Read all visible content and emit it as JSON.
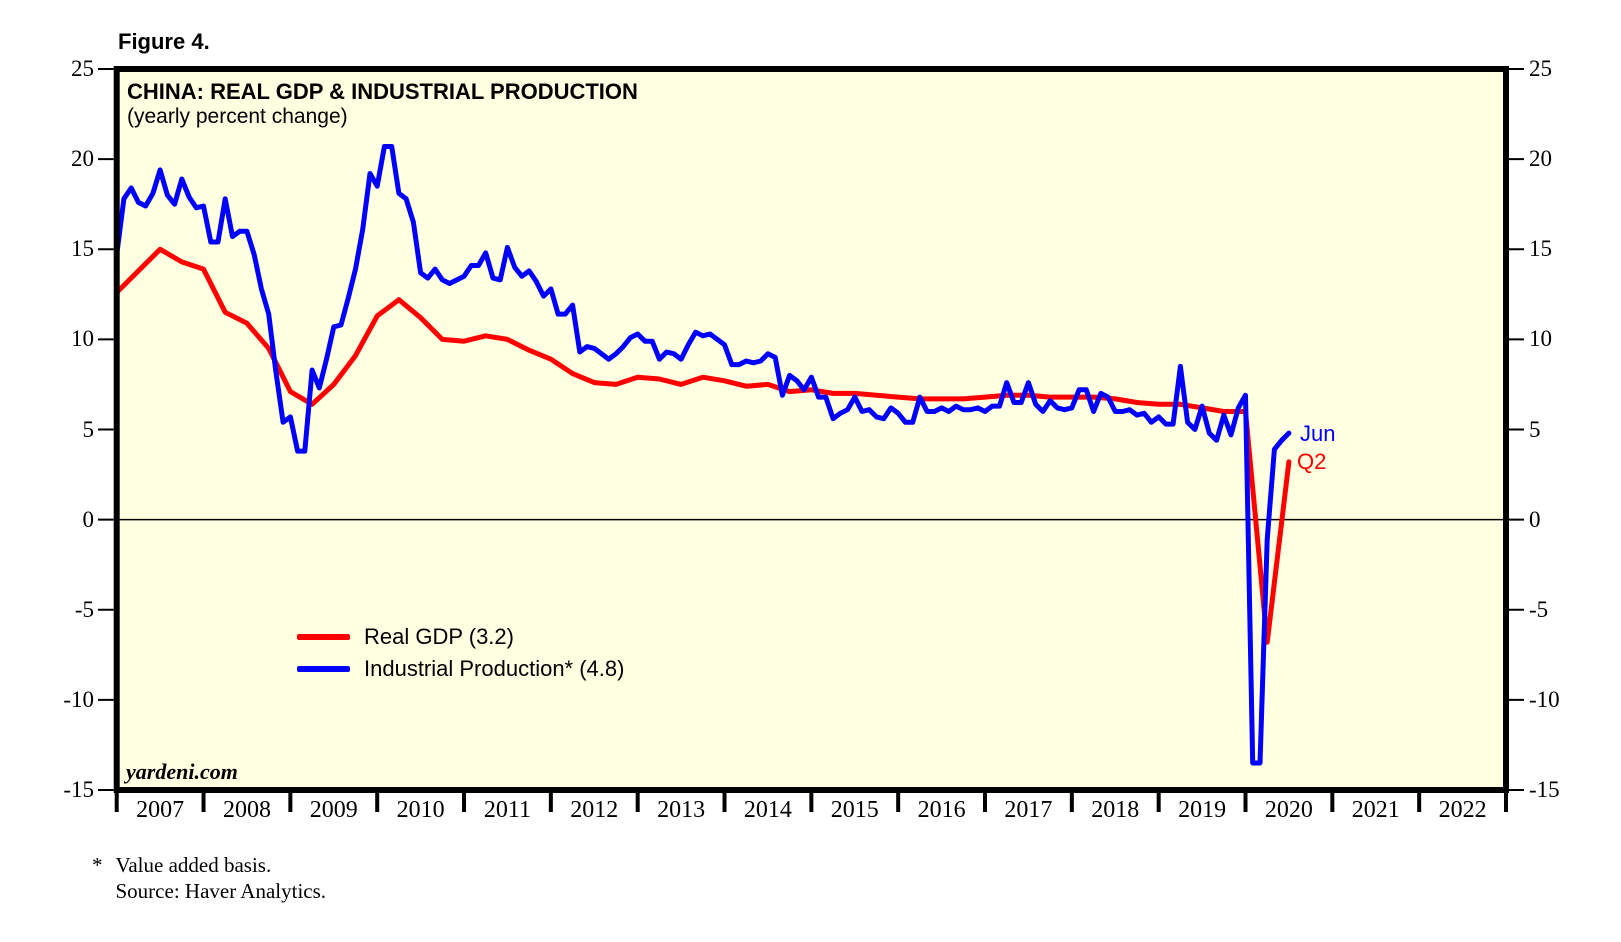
{
  "figure_label": "Figure 4.",
  "chart": {
    "title": "CHINA: REAL GDP & INDUSTRIAL PRODUCTION",
    "subtitle": "(yearly percent change)",
    "watermark": "yardeni.com",
    "annotations": {
      "ip_end_label": "Jun",
      "gdp_end_label": "Q2"
    },
    "legend": [
      {
        "label": "Real GDP (3.2)",
        "color": "#FF0000"
      },
      {
        "label": "Industrial Production* (4.8)",
        "color": "#0000FF"
      }
    ],
    "colors": {
      "plot_background": "#FFFFE1",
      "frame": "#000000",
      "gdp_line": "#FF0000",
      "ip_line": "#0000FF"
    }
  },
  "footnote": {
    "marker": "*",
    "line1": "Value added basis.",
    "line2": "Source: Haver Analytics."
  },
  "chart_data": {
    "type": "line",
    "title": "CHINA: REAL GDP & INDUSTRIAL PRODUCTION",
    "subtitle": "(yearly percent change)",
    "xlim": [
      2007,
      2023
    ],
    "ylim": [
      -15,
      25
    ],
    "y_tick_labels": [
      "25",
      "20",
      "15",
      "10",
      "5",
      "0",
      "-5",
      "-10",
      "-15"
    ],
    "x_tick_labels": [
      "2007",
      "2008",
      "2009",
      "2010",
      "2011",
      "2012",
      "2013",
      "2014",
      "2015",
      "2016",
      "2017",
      "2018",
      "2019",
      "2020",
      "2021",
      "2022"
    ],
    "grid": "zero-line-only",
    "legend_position": "inside-left-middle",
    "plot_bg": "#FFFFE1",
    "series": [
      {
        "name": "Real GDP (3.2)",
        "color": "#FF0000",
        "frequency": "quarterly",
        "first_period": "2006Q4",
        "last_period": "2020Q2",
        "points_per_year": 4,
        "t0": 2007.0,
        "end_annotation": "Q2",
        "values": [
          12.6,
          13.8,
          15.0,
          14.3,
          13.9,
          11.5,
          10.9,
          9.5,
          7.1,
          6.4,
          7.5,
          9.1,
          11.3,
          12.2,
          11.2,
          10.0,
          9.9,
          10.2,
          10.0,
          9.4,
          8.9,
          8.1,
          7.6,
          7.5,
          7.9,
          7.8,
          7.5,
          7.9,
          7.7,
          7.4,
          7.5,
          7.1,
          7.2,
          7.0,
          7.0,
          6.9,
          6.8,
          6.7,
          6.7,
          6.7,
          6.8,
          6.9,
          6.9,
          6.8,
          6.8,
          6.8,
          6.7,
          6.5,
          6.4,
          6.4,
          6.2,
          6.0,
          6.0,
          -6.8,
          3.2
        ]
      },
      {
        "name": "Industrial Production* (4.8)",
        "color": "#0000FF",
        "frequency": "monthly",
        "first_period": "2006-12",
        "last_period": "2020-06",
        "points_per_year": 12,
        "t0": 2007.0,
        "end_annotation": "Jun",
        "values": [
          14.7,
          17.8,
          18.4,
          17.6,
          17.4,
          18.1,
          19.4,
          18.0,
          17.5,
          18.9,
          17.9,
          17.3,
          17.4,
          15.4,
          15.4,
          17.8,
          15.7,
          16.0,
          16.0,
          14.7,
          12.8,
          11.4,
          8.2,
          5.4,
          5.7,
          3.8,
          3.8,
          8.3,
          7.3,
          8.9,
          10.7,
          10.8,
          12.3,
          13.9,
          16.1,
          19.2,
          18.5,
          20.7,
          20.7,
          18.1,
          17.8,
          16.5,
          13.7,
          13.4,
          13.9,
          13.3,
          13.1,
          13.3,
          13.5,
          14.1,
          14.1,
          14.8,
          13.4,
          13.3,
          15.1,
          14.0,
          13.5,
          13.8,
          13.2,
          12.4,
          12.8,
          11.4,
          11.4,
          11.9,
          9.3,
          9.6,
          9.5,
          9.2,
          8.9,
          9.2,
          9.6,
          10.1,
          10.3,
          9.9,
          9.9,
          8.9,
          9.3,
          9.2,
          8.9,
          9.7,
          10.4,
          10.2,
          10.3,
          10.0,
          9.7,
          8.6,
          8.6,
          8.8,
          8.7,
          8.8,
          9.2,
          9.0,
          6.9,
          8.0,
          7.7,
          7.2,
          7.9,
          6.8,
          6.8,
          5.6,
          5.9,
          6.1,
          6.8,
          6.0,
          6.1,
          5.7,
          5.6,
          6.2,
          5.9,
          5.4,
          5.4,
          6.8,
          6.0,
          6.0,
          6.2,
          6.0,
          6.3,
          6.1,
          6.1,
          6.2,
          6.0,
          6.3,
          6.3,
          7.6,
          6.5,
          6.5,
          7.6,
          6.4,
          6.0,
          6.6,
          6.2,
          6.1,
          6.2,
          7.2,
          7.2,
          6.0,
          7.0,
          6.8,
          6.0,
          6.0,
          6.1,
          5.8,
          5.9,
          5.4,
          5.7,
          5.3,
          5.3,
          8.5,
          5.4,
          5.0,
          6.3,
          4.8,
          4.4,
          5.8,
          4.7,
          6.2,
          6.9,
          -13.5,
          -13.5,
          -1.1,
          3.9,
          4.4,
          4.8
        ]
      }
    ]
  }
}
